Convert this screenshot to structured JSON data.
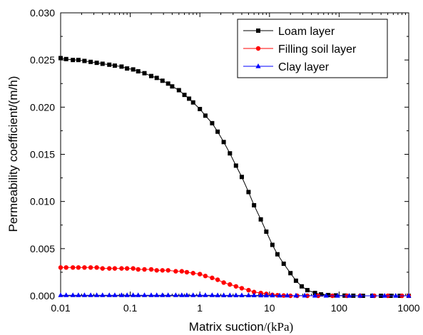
{
  "chart_data": {
    "type": "line",
    "xlabel_main": "Matrix suction",
    "xlabel_unit": "/(kPa)",
    "ylabel": "Permeability coefficient/(m/h)",
    "x_scale": "log",
    "xlim": [
      0.01,
      1000
    ],
    "ylim": [
      0,
      0.03
    ],
    "x_ticks": [
      "0.01",
      "0.1",
      "1",
      "10",
      "100",
      "1000"
    ],
    "x_tick_values": [
      0.01,
      0.1,
      1,
      10,
      100,
      1000
    ],
    "y_ticks": [
      "0.000",
      "0.005",
      "0.010",
      "0.015",
      "0.020",
      "0.025",
      "0.030"
    ],
    "y_tick_values": [
      0,
      0.005,
      0.01,
      0.015,
      0.02,
      0.025,
      0.03
    ],
    "grid": false,
    "legend_position": "top-right",
    "series": [
      {
        "name": "Loam layer",
        "color": "#000000",
        "marker": "square",
        "points": [
          [
            0.01,
            0.0252
          ],
          [
            0.012,
            0.0251
          ],
          [
            0.015,
            0.025
          ],
          [
            0.018,
            0.025
          ],
          [
            0.022,
            0.0249
          ],
          [
            0.027,
            0.0248
          ],
          [
            0.033,
            0.0247
          ],
          [
            0.04,
            0.0246
          ],
          [
            0.05,
            0.0245
          ],
          [
            0.06,
            0.0244
          ],
          [
            0.075,
            0.0243
          ],
          [
            0.09,
            0.0241
          ],
          [
            0.11,
            0.024
          ],
          [
            0.13,
            0.0238
          ],
          [
            0.16,
            0.0236
          ],
          [
            0.2,
            0.0233
          ],
          [
            0.24,
            0.0231
          ],
          [
            0.29,
            0.0228
          ],
          [
            0.35,
            0.0225
          ],
          [
            0.4,
            0.0222
          ],
          [
            0.5,
            0.0218
          ],
          [
            0.6,
            0.0213
          ],
          [
            0.7,
            0.0209
          ],
          [
            0.8,
            0.0205
          ],
          [
            1.0,
            0.0198
          ],
          [
            1.2,
            0.0191
          ],
          [
            1.5,
            0.0183
          ],
          [
            1.8,
            0.0174
          ],
          [
            2.2,
            0.0163
          ],
          [
            2.7,
            0.0151
          ],
          [
            3.3,
            0.0138
          ],
          [
            4.0,
            0.0126
          ],
          [
            5.0,
            0.011
          ],
          [
            6.0,
            0.0096
          ],
          [
            7.5,
            0.0081
          ],
          [
            9.0,
            0.0068
          ],
          [
            11,
            0.0054
          ],
          [
            13,
            0.0044
          ],
          [
            16,
            0.0034
          ],
          [
            20,
            0.0024
          ],
          [
            24,
            0.0016
          ],
          [
            29,
            0.001
          ],
          [
            35,
            0.0006
          ],
          [
            45,
            0.0003
          ],
          [
            55,
            0.00015
          ],
          [
            70,
            8e-05
          ],
          [
            90,
            4e-05
          ],
          [
            120,
            2e-05
          ],
          [
            160,
            1e-05
          ],
          [
            220,
            0.0
          ],
          [
            300,
            0.0
          ],
          [
            400,
            0.0
          ],
          [
            550,
            0.0
          ],
          [
            750,
            0.0
          ],
          [
            1000,
            0.0
          ]
        ]
      },
      {
        "name": "Filling soil layer",
        "color": "#ff0000",
        "marker": "circle",
        "points": [
          [
            0.01,
            0.003
          ],
          [
            0.012,
            0.003
          ],
          [
            0.015,
            0.003
          ],
          [
            0.018,
            0.003
          ],
          [
            0.022,
            0.003
          ],
          [
            0.027,
            0.003
          ],
          [
            0.033,
            0.003
          ],
          [
            0.04,
            0.0029
          ],
          [
            0.05,
            0.0029
          ],
          [
            0.06,
            0.0029
          ],
          [
            0.075,
            0.0029
          ],
          [
            0.09,
            0.0029
          ],
          [
            0.11,
            0.0029
          ],
          [
            0.13,
            0.0028
          ],
          [
            0.16,
            0.0028
          ],
          [
            0.2,
            0.0028
          ],
          [
            0.24,
            0.0027
          ],
          [
            0.29,
            0.0027
          ],
          [
            0.35,
            0.0027
          ],
          [
            0.45,
            0.0026
          ],
          [
            0.55,
            0.0026
          ],
          [
            0.65,
            0.0025
          ],
          [
            0.8,
            0.0024
          ],
          [
            1.0,
            0.0023
          ],
          [
            1.2,
            0.0021
          ],
          [
            1.5,
            0.0019
          ],
          [
            1.8,
            0.0017
          ],
          [
            2.2,
            0.0014
          ],
          [
            2.7,
            0.0012
          ],
          [
            3.3,
            0.001
          ],
          [
            4.0,
            0.0008
          ],
          [
            5.0,
            0.0006
          ],
          [
            6.0,
            0.0004
          ],
          [
            7.5,
            0.0003
          ],
          [
            9.0,
            0.0002
          ],
          [
            11,
            0.0001
          ],
          [
            13,
            6e-05
          ],
          [
            16,
            3e-05
          ],
          [
            20,
            0.0
          ],
          [
            25,
            0.0
          ],
          [
            35,
            0.0
          ],
          [
            50,
            0.0
          ],
          [
            80,
            0.0
          ],
          [
            130,
            0.0
          ],
          [
            200,
            0.0
          ],
          [
            320,
            0.0
          ],
          [
            500,
            0.0
          ],
          [
            800,
            0.0
          ],
          [
            1000,
            0.0
          ]
        ]
      },
      {
        "name": "Clay layer",
        "color": "#0000ff",
        "marker": "triangle",
        "points": [
          [
            0.01,
            6e-05
          ],
          [
            0.012,
            6e-05
          ],
          [
            0.015,
            6e-05
          ],
          [
            0.018,
            6e-05
          ],
          [
            0.022,
            6e-05
          ],
          [
            0.027,
            6e-05
          ],
          [
            0.033,
            6e-05
          ],
          [
            0.04,
            6e-05
          ],
          [
            0.05,
            6e-05
          ],
          [
            0.06,
            6e-05
          ],
          [
            0.075,
            6e-05
          ],
          [
            0.09,
            6e-05
          ],
          [
            0.11,
            6e-05
          ],
          [
            0.13,
            6e-05
          ],
          [
            0.16,
            6e-05
          ],
          [
            0.2,
            6e-05
          ],
          [
            0.24,
            6e-05
          ],
          [
            0.29,
            6e-05
          ],
          [
            0.35,
            6e-05
          ],
          [
            0.45,
            6e-05
          ],
          [
            0.55,
            6e-05
          ],
          [
            0.65,
            6e-05
          ],
          [
            0.8,
            6e-05
          ],
          [
            1.0,
            6e-05
          ],
          [
            1.2,
            6e-05
          ],
          [
            1.5,
            6e-05
          ],
          [
            1.8,
            5e-05
          ],
          [
            2.2,
            5e-05
          ],
          [
            2.7,
            5e-05
          ],
          [
            3.3,
            5e-05
          ],
          [
            4.0,
            5e-05
          ],
          [
            5.0,
            5e-05
          ],
          [
            6.0,
            5e-05
          ],
          [
            7.5,
            4e-05
          ],
          [
            9.0,
            4e-05
          ],
          [
            11,
            4e-05
          ],
          [
            14,
            3e-05
          ],
          [
            18,
            3e-05
          ],
          [
            24,
            2e-05
          ],
          [
            32,
            2e-05
          ],
          [
            45,
            1e-05
          ],
          [
            65,
            1e-05
          ],
          [
            95,
            0.0
          ],
          [
            140,
            0.0
          ],
          [
            200,
            0.0
          ],
          [
            300,
            0.0
          ],
          [
            450,
            0.0
          ],
          [
            650,
            0.0
          ],
          [
            1000,
            0.0
          ]
        ]
      }
    ]
  }
}
